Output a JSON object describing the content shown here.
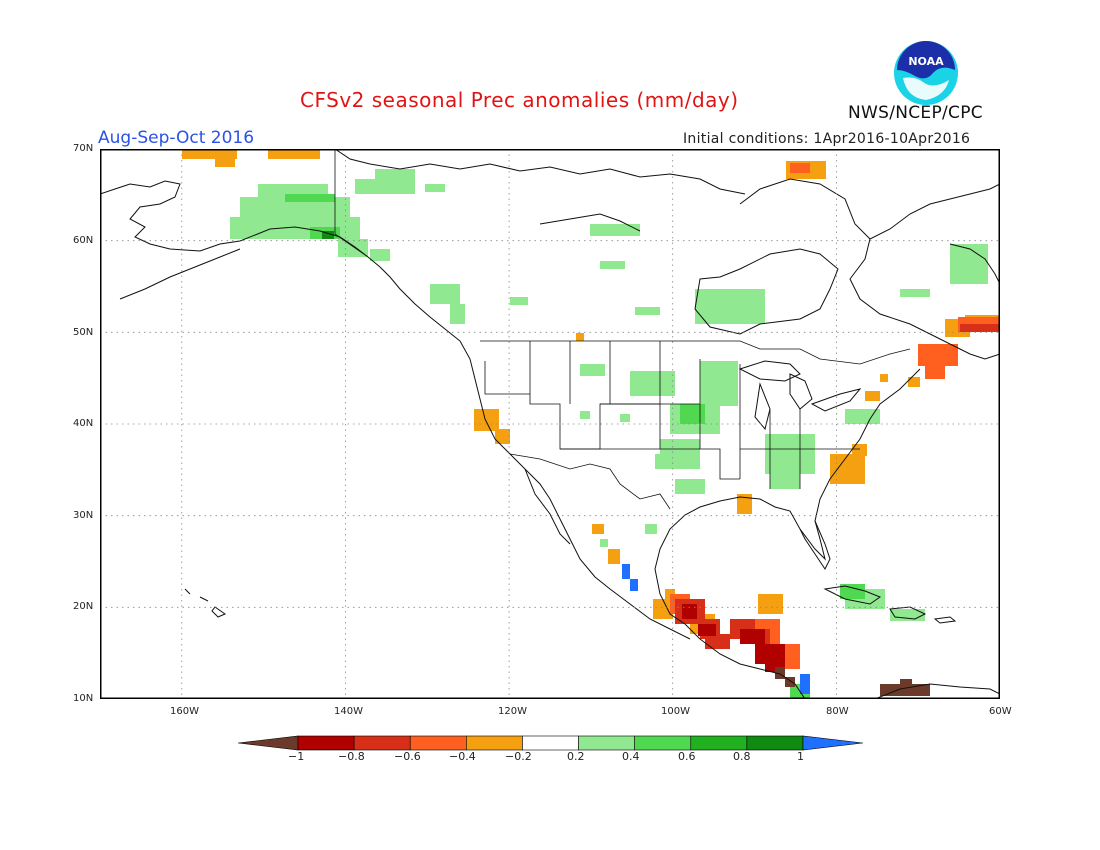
{
  "header": {
    "title": "CFSv2 seasonal Prec anomalies (mm/day)",
    "season": "Aug-Sep-Oct 2016",
    "init_conditions": "Initial conditions: 1Apr2016-10Apr2016",
    "agency": "NWS/NCEP/CPC",
    "logo_text": "NOAA"
  },
  "map": {
    "projection": "lat-lon",
    "lon_range": [
      -170,
      -60
    ],
    "lat_range": [
      10,
      70
    ],
    "lon_ticks": [
      "160W",
      "140W",
      "120W",
      "100W",
      "80W",
      "60W"
    ],
    "lat_ticks": [
      "70N",
      "60N",
      "50N",
      "40N",
      "30N",
      "20N",
      "10N"
    ],
    "grid": "dotted"
  },
  "colorbar": {
    "labels": [
      "−1",
      "−0.8",
      "−0.6",
      "−0.4",
      "−0.2",
      "0.2",
      "0.4",
      "0.6",
      "0.8",
      "1"
    ],
    "colors": [
      "#6b3a2a",
      "#b00000",
      "#d83018",
      "#ff6020",
      "#f4a010",
      "#ffffff",
      "#90e890",
      "#50d850",
      "#20b020",
      "#108a10",
      "#2070ff"
    ]
  }
}
